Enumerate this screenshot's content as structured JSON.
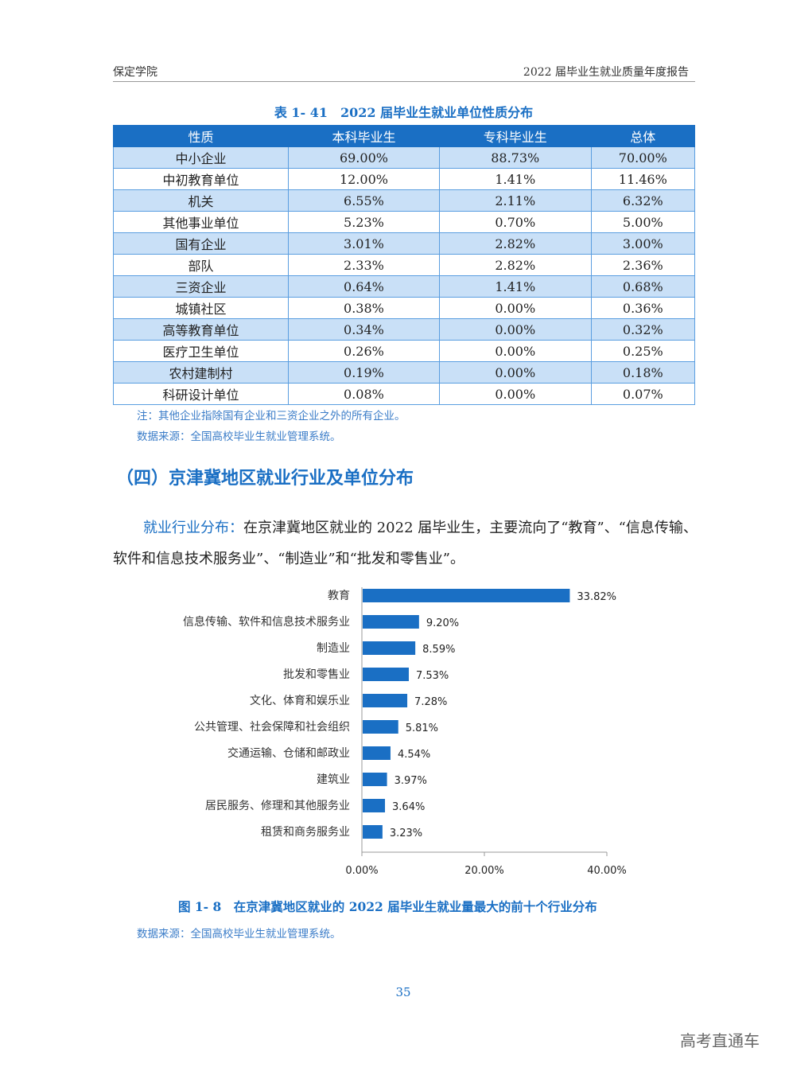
{
  "header": {
    "left": "保定学院",
    "right": "2022 届毕业生就业质量年度报告"
  },
  "table": {
    "title": "表 1- 41　2022 届毕业生就业单位性质分布",
    "columns": [
      "性质",
      "本科毕业生",
      "专科毕业生",
      "总体"
    ],
    "rows": [
      [
        "中小企业",
        "69.00%",
        "88.73%",
        "70.00%"
      ],
      [
        "中初教育单位",
        "12.00%",
        "1.41%",
        "11.46%"
      ],
      [
        "机关",
        "6.55%",
        "2.11%",
        "6.32%"
      ],
      [
        "其他事业单位",
        "5.23%",
        "0.70%",
        "5.00%"
      ],
      [
        "国有企业",
        "3.01%",
        "2.82%",
        "3.00%"
      ],
      [
        "部队",
        "2.33%",
        "2.82%",
        "2.36%"
      ],
      [
        "三资企业",
        "0.64%",
        "1.41%",
        "0.68%"
      ],
      [
        "城镇社区",
        "0.38%",
        "0.00%",
        "0.36%"
      ],
      [
        "高等教育单位",
        "0.34%",
        "0.00%",
        "0.32%"
      ],
      [
        "医疗卫生单位",
        "0.26%",
        "0.00%",
        "0.25%"
      ],
      [
        "农村建制村",
        "0.19%",
        "0.00%",
        "0.18%"
      ],
      [
        "科研设计单位",
        "0.08%",
        "0.00%",
        "0.07%"
      ]
    ],
    "note": "注：其他企业指除国有企业和三资企业之外的所有企业。",
    "source": "数据来源：全国高校毕业生就业管理系统。"
  },
  "section_title": "（四）京津冀地区就业行业及单位分布",
  "paragraph": {
    "lead": "就业行业分布：",
    "text": "在京津冀地区就业的 2022 届毕业生，主要流向了“教育”、“信息传输、软件和信息技术服务业”、“制造业”和“批发和零售业”。"
  },
  "chart_data": {
    "type": "bar",
    "orientation": "horizontal",
    "categories": [
      "教育",
      "信息传输、软件和信息技术服务业",
      "制造业",
      "批发和零售业",
      "文化、体育和娱乐业",
      "公共管理、社会保障和社会组织",
      "交通运输、仓储和邮政业",
      "建筑业",
      "居民服务、修理和其他服务业",
      "租赁和商务服务业"
    ],
    "values": [
      33.82,
      9.2,
      8.59,
      7.53,
      7.28,
      5.81,
      4.54,
      3.97,
      3.64,
      3.23
    ],
    "labels": [
      "33.82%",
      "9.20%",
      "8.59%",
      "7.53%",
      "7.28%",
      "5.81%",
      "4.54%",
      "3.97%",
      "3.64%",
      "3.23%"
    ],
    "xlim": [
      0,
      40
    ],
    "xticks": [
      "0.00%",
      "20.00%",
      "40.00%"
    ],
    "color": "#1a6fc4"
  },
  "figure": {
    "caption": "图 1- 8　在京津冀地区就业的 2022 届毕业生就业量最大的前十个行业分布",
    "source": "数据来源：全国高校毕业生就业管理系统。"
  },
  "page_number": "35",
  "watermark": "高考直通车"
}
